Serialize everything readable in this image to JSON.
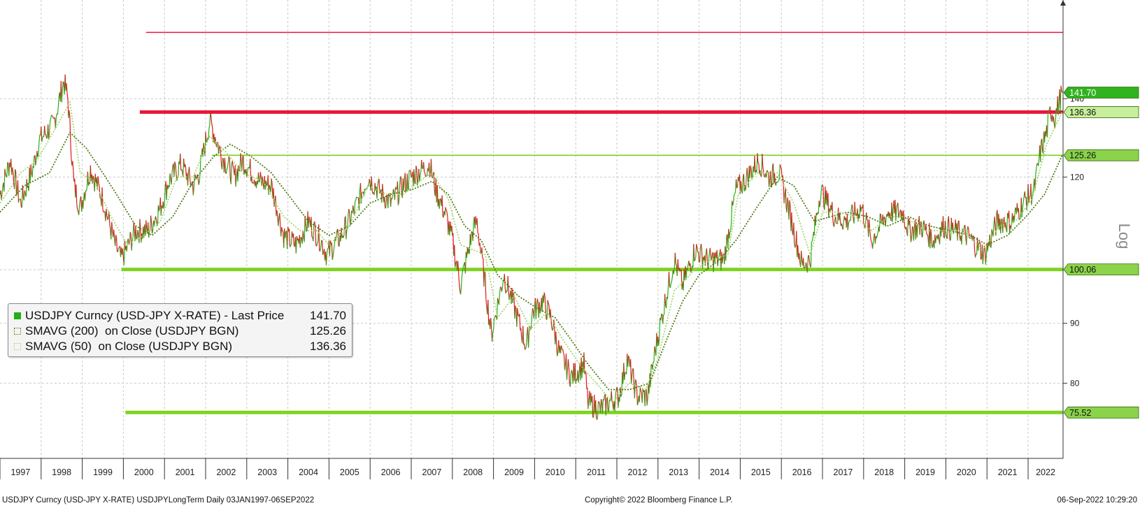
{
  "chart_data": {
    "type": "line",
    "y_scale": "log",
    "y_axis_title": "Log",
    "ylim": [
      69,
      170
    ],
    "xlim": [
      1997.0,
      2022.85
    ],
    "yticks": [
      80,
      90,
      100,
      120,
      140
    ],
    "x_year_labels": [
      "1997",
      "1998",
      "1999",
      "2000",
      "2001",
      "2002",
      "2003",
      "2004",
      "2005",
      "2006",
      "2007",
      "2008",
      "2009",
      "2010",
      "2011",
      "2012",
      "2013",
      "2014",
      "2015",
      "2016",
      "2017",
      "2018",
      "2019",
      "2020",
      "2021",
      "2022"
    ],
    "series": [
      {
        "name": "USDJPY Curncy (USD-JPY X-RATE) - Last Price",
        "last_value": "141.70",
        "points": [
          [
            1997.0,
            116
          ],
          [
            1997.25,
            124
          ],
          [
            1997.5,
            114
          ],
          [
            1997.8,
            122
          ],
          [
            1997.95,
            129
          ],
          [
            1998.3,
            133
          ],
          [
            1998.55,
            145
          ],
          [
            1998.65,
            140
          ],
          [
            1998.8,
            118
          ],
          [
            1998.95,
            113
          ],
          [
            1999.2,
            122
          ],
          [
            1999.5,
            115
          ],
          [
            1999.8,
            105
          ],
          [
            1999.95,
            102
          ],
          [
            2000.3,
            108
          ],
          [
            2000.6,
            108
          ],
          [
            2000.9,
            113
          ],
          [
            2001.1,
            119
          ],
          [
            2001.4,
            123
          ],
          [
            2001.7,
            118
          ],
          [
            2001.85,
            121
          ],
          [
            2002.1,
            134
          ],
          [
            2002.4,
            125
          ],
          [
            2002.7,
            120
          ],
          [
            2002.9,
            124
          ],
          [
            2003.3,
            119
          ],
          [
            2003.6,
            118
          ],
          [
            2003.9,
            107
          ],
          [
            2004.2,
            105
          ],
          [
            2004.5,
            110
          ],
          [
            2004.8,
            106
          ],
          [
            2004.95,
            103
          ],
          [
            2005.3,
            107
          ],
          [
            2005.6,
            112
          ],
          [
            2005.95,
            120
          ],
          [
            2006.3,
            116
          ],
          [
            2006.5,
            114
          ],
          [
            2006.8,
            118
          ],
          [
            2007.0,
            120
          ],
          [
            2007.45,
            123
          ],
          [
            2007.6,
            117
          ],
          [
            2007.85,
            111
          ],
          [
            2008.0,
            106
          ],
          [
            2008.2,
            97
          ],
          [
            2008.5,
            108
          ],
          [
            2008.6,
            110
          ],
          [
            2008.8,
            97
          ],
          [
            2008.95,
            88
          ],
          [
            2009.25,
            99
          ],
          [
            2009.5,
            93
          ],
          [
            2009.8,
            86
          ],
          [
            2009.95,
            92
          ],
          [
            2010.2,
            94
          ],
          [
            2010.4,
            91
          ],
          [
            2010.6,
            85
          ],
          [
            2010.9,
            81
          ],
          [
            2011.2,
            83
          ],
          [
            2011.3,
            77
          ],
          [
            2011.6,
            76
          ],
          [
            2011.8,
            77
          ],
          [
            2012.05,
            78
          ],
          [
            2012.25,
            84
          ],
          [
            2012.5,
            78
          ],
          [
            2012.75,
            78
          ],
          [
            2012.95,
            86
          ],
          [
            2013.2,
            95
          ],
          [
            2013.4,
            102
          ],
          [
            2013.6,
            97
          ],
          [
            2013.9,
            104
          ],
          [
            2014.2,
            102
          ],
          [
            2014.6,
            102
          ],
          [
            2014.9,
            117
          ],
          [
            2015.1,
            119
          ],
          [
            2015.45,
            124
          ],
          [
            2015.7,
            120
          ],
          [
            2015.95,
            121
          ],
          [
            2016.2,
            112
          ],
          [
            2016.5,
            101
          ],
          [
            2016.7,
            102
          ],
          [
            2016.95,
            117
          ],
          [
            2017.3,
            111
          ],
          [
            2017.6,
            110
          ],
          [
            2017.95,
            113
          ],
          [
            2018.2,
            106
          ],
          [
            2018.6,
            112
          ],
          [
            2018.95,
            112
          ],
          [
            2019.1,
            108
          ],
          [
            2019.4,
            109
          ],
          [
            2019.7,
            106
          ],
          [
            2019.95,
            109
          ],
          [
            2020.2,
            108
          ],
          [
            2020.5,
            107
          ],
          [
            2020.95,
            103
          ],
          [
            2021.25,
            110
          ],
          [
            2021.6,
            110
          ],
          [
            2021.95,
            115
          ],
          [
            2022.15,
            117
          ],
          [
            2022.3,
            126
          ],
          [
            2022.45,
            131
          ],
          [
            2022.55,
            137
          ],
          [
            2022.65,
            135
          ],
          [
            2022.75,
            139
          ],
          [
            2022.83,
            141.7
          ]
        ]
      },
      {
        "name": "SMAVG (200)  on Close (USDJPY BGN)",
        "last_value": "125.26",
        "points": [
          [
            1997.0,
            112
          ],
          [
            1997.6,
            118
          ],
          [
            1998.2,
            121
          ],
          [
            1998.7,
            131
          ],
          [
            1999.1,
            127
          ],
          [
            1999.5,
            121
          ],
          [
            1999.9,
            115
          ],
          [
            2000.3,
            109
          ],
          [
            2000.7,
            107
          ],
          [
            2001.2,
            111
          ],
          [
            2001.7,
            119
          ],
          [
            2002.2,
            125
          ],
          [
            2002.6,
            128
          ],
          [
            2003.1,
            125
          ],
          [
            2003.6,
            121
          ],
          [
            2004.0,
            116
          ],
          [
            2004.5,
            110
          ],
          [
            2005.0,
            107
          ],
          [
            2005.5,
            109
          ],
          [
            2006.0,
            114
          ],
          [
            2006.5,
            116
          ],
          [
            2007.0,
            117
          ],
          [
            2007.5,
            119
          ],
          [
            2007.9,
            116
          ],
          [
            2008.3,
            109
          ],
          [
            2008.7,
            106
          ],
          [
            2009.1,
            99
          ],
          [
            2009.6,
            95
          ],
          [
            2010.0,
            93
          ],
          [
            2010.5,
            91
          ],
          [
            2010.9,
            87
          ],
          [
            2011.3,
            83
          ],
          [
            2011.8,
            79
          ],
          [
            2012.3,
            79
          ],
          [
            2012.8,
            80
          ],
          [
            2013.2,
            87
          ],
          [
            2013.6,
            94
          ],
          [
            2014.0,
            99
          ],
          [
            2014.5,
            102
          ],
          [
            2014.9,
            106
          ],
          [
            2015.4,
            113
          ],
          [
            2015.9,
            120
          ],
          [
            2016.3,
            118
          ],
          [
            2016.8,
            110
          ],
          [
            2017.2,
            111
          ],
          [
            2017.6,
            112
          ],
          [
            2018.1,
            111
          ],
          [
            2018.6,
            109
          ],
          [
            2019.1,
            111
          ],
          [
            2019.6,
            109
          ],
          [
            2020.1,
            108
          ],
          [
            2020.6,
            107
          ],
          [
            2021.0,
            105
          ],
          [
            2021.5,
            107
          ],
          [
            2021.95,
            111
          ],
          [
            2022.4,
            116
          ],
          [
            2022.83,
            125.26
          ]
        ]
      },
      {
        "name": "SMAVG (50)  on Close (USDJPY BGN)",
        "last_value": "136.36",
        "points": [
          [
            1997.0,
            114
          ],
          [
            1997.5,
            121
          ],
          [
            1997.9,
            124
          ],
          [
            1998.4,
            133
          ],
          [
            1998.7,
            139
          ],
          [
            1998.95,
            121
          ],
          [
            1999.3,
            119
          ],
          [
            1999.7,
            111
          ],
          [
            2000.1,
            105
          ],
          [
            2000.5,
            107
          ],
          [
            2000.9,
            110
          ],
          [
            2001.3,
            120
          ],
          [
            2001.7,
            120
          ],
          [
            2002.1,
            130
          ],
          [
            2002.5,
            126
          ],
          [
            2002.9,
            121
          ],
          [
            2003.4,
            119
          ],
          [
            2003.9,
            111
          ],
          [
            2004.3,
            108
          ],
          [
            2004.7,
            108
          ],
          [
            2005.0,
            105
          ],
          [
            2005.5,
            109
          ],
          [
            2005.95,
            118
          ],
          [
            2006.4,
            116
          ],
          [
            2006.8,
            116
          ],
          [
            2007.2,
            119
          ],
          [
            2007.5,
            121
          ],
          [
            2007.9,
            115
          ],
          [
            2008.2,
            105
          ],
          [
            2008.5,
            104
          ],
          [
            2008.8,
            103
          ],
          [
            2009.1,
            91
          ],
          [
            2009.5,
            95
          ],
          [
            2009.9,
            89
          ],
          [
            2010.3,
            92
          ],
          [
            2010.7,
            87
          ],
          [
            2011.1,
            83
          ],
          [
            2011.5,
            80
          ],
          [
            2011.9,
            77
          ],
          [
            2012.3,
            80
          ],
          [
            2012.7,
            79
          ],
          [
            2013.0,
            84
          ],
          [
            2013.4,
            96
          ],
          [
            2013.9,
            100
          ],
          [
            2014.3,
            102
          ],
          [
            2014.7,
            103
          ],
          [
            2014.95,
            116
          ],
          [
            2015.4,
            121
          ],
          [
            2015.9,
            121
          ],
          [
            2016.3,
            114
          ],
          [
            2016.7,
            103
          ],
          [
            2017.0,
            112
          ],
          [
            2017.4,
            112
          ],
          [
            2017.8,
            111
          ],
          [
            2018.2,
            108
          ],
          [
            2018.6,
            111
          ],
          [
            2019.0,
            111
          ],
          [
            2019.5,
            108
          ],
          [
            2019.95,
            108
          ],
          [
            2020.4,
            108
          ],
          [
            2020.9,
            104
          ],
          [
            2021.3,
            109
          ],
          [
            2021.7,
            110
          ],
          [
            2022.1,
            115
          ],
          [
            2022.45,
            128
          ],
          [
            2022.83,
            136.36
          ]
        ]
      }
    ],
    "horizontal_lines": [
      {
        "value": 159.5,
        "color": "#e8173a",
        "x_start": 2000.55,
        "weight": "thin"
      },
      {
        "value": 136.36,
        "color": "#e8173a",
        "x_start": 2000.4,
        "weight": "thick"
      },
      {
        "value": 125.26,
        "color": "#7fd321",
        "x_start": 2002.15,
        "weight": "thin"
      },
      {
        "value": 100.06,
        "color": "#7fd321",
        "x_start": 1999.95,
        "weight": "thick"
      },
      {
        "value": 75.52,
        "color": "#7fd321",
        "x_start": 2000.05,
        "weight": "thick"
      }
    ],
    "axis_tags": [
      {
        "value": 141.7,
        "label": "141.70",
        "fill": "#2fb31e",
        "text_color": "#ffffff"
      },
      {
        "value": 136.36,
        "label": "136.36",
        "fill": "#c8ef9c",
        "text_color": "#111111"
      },
      {
        "value": 125.26,
        "label": "125.26",
        "fill": "#8bd34a",
        "text_color": "#111111"
      },
      {
        "value": 100.06,
        "label": "100.06",
        "fill": "#8bd34a",
        "text_color": "#111111"
      },
      {
        "value": 75.52,
        "label": "75.52",
        "fill": "#8bd34a",
        "text_color": "#111111"
      }
    ]
  },
  "legend": {
    "items": [
      {
        "name": "USDJPY Curncy (USD-JPY X-RATE) - Last Price",
        "value": "141.70",
        "swatch": "#22b014"
      },
      {
        "name": "SMAVG (200)  on Close (USDJPY BGN)",
        "value": "125.26",
        "swatch": "#4e7a12"
      },
      {
        "name": "SMAVG (50)  on Close (USDJPY BGN)",
        "value": "136.36",
        "swatch": "#a4d774"
      }
    ]
  },
  "footer": {
    "left": "USDJPY Curncy (USD-JPY X-RATE) USDJPYLongTerm  Daily 03JAN1997-06SEP2022",
    "center": "Copyright© 2022 Bloomberg Finance L.P.",
    "right": "06-Sep-2022 10:29:20"
  },
  "colors": {
    "up": "#22b014",
    "down": "#e8131f",
    "sma200": "#4e7a12",
    "sma50": "#a4d774",
    "grid": "#c9c9c9"
  }
}
